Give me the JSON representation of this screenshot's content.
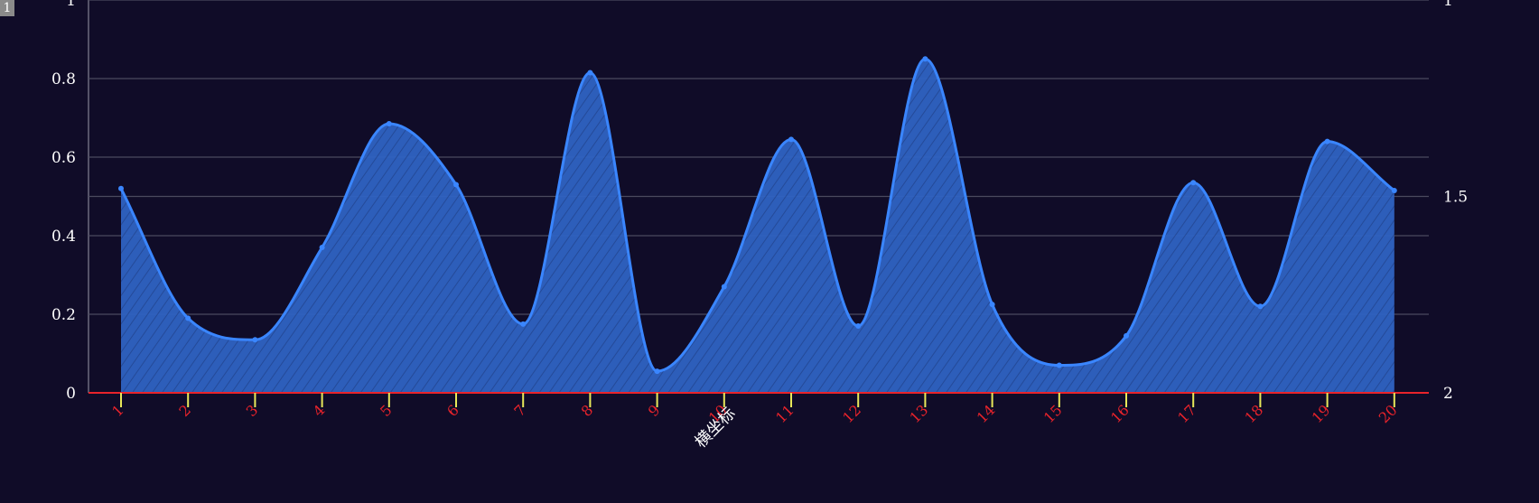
{
  "badge_label": "1",
  "chart_data": {
    "type": "area",
    "smooth": true,
    "title": "",
    "xlabel": "横坐标",
    "ylabel": "",
    "categories": [
      "1",
      "2",
      "3",
      "4",
      "5",
      "6",
      "7",
      "8",
      "9",
      "10",
      "11",
      "12",
      "13",
      "14",
      "15",
      "16",
      "17",
      "18",
      "19",
      "20"
    ],
    "series": [
      {
        "name": "",
        "values": [
          0.52,
          0.19,
          0.135,
          0.37,
          0.685,
          0.53,
          0.175,
          0.815,
          0.055,
          0.27,
          0.645,
          0.17,
          0.85,
          0.225,
          0.07,
          0.145,
          0.535,
          0.22,
          0.64,
          0.515
        ]
      }
    ],
    "ylim": [
      0,
      1
    ],
    "y_ticks": [
      "0",
      "0.2",
      "0.4",
      "0.6",
      "0.8",
      "1"
    ],
    "y2_ticks": [
      "2",
      "1.5",
      "1"
    ],
    "y2_tick_values": [
      0,
      0.5,
      1
    ],
    "grid": true,
    "legend": "none",
    "colors": {
      "background": "#100c28",
      "area_fill": "#2f62c2",
      "line": "#3a86ff",
      "grid": "#4a4a5e",
      "x_axis": "#e8232b",
      "x_tick": "#e8e85a",
      "x_tick_label": "#e8232b",
      "axis_text": "#ffffff"
    }
  }
}
